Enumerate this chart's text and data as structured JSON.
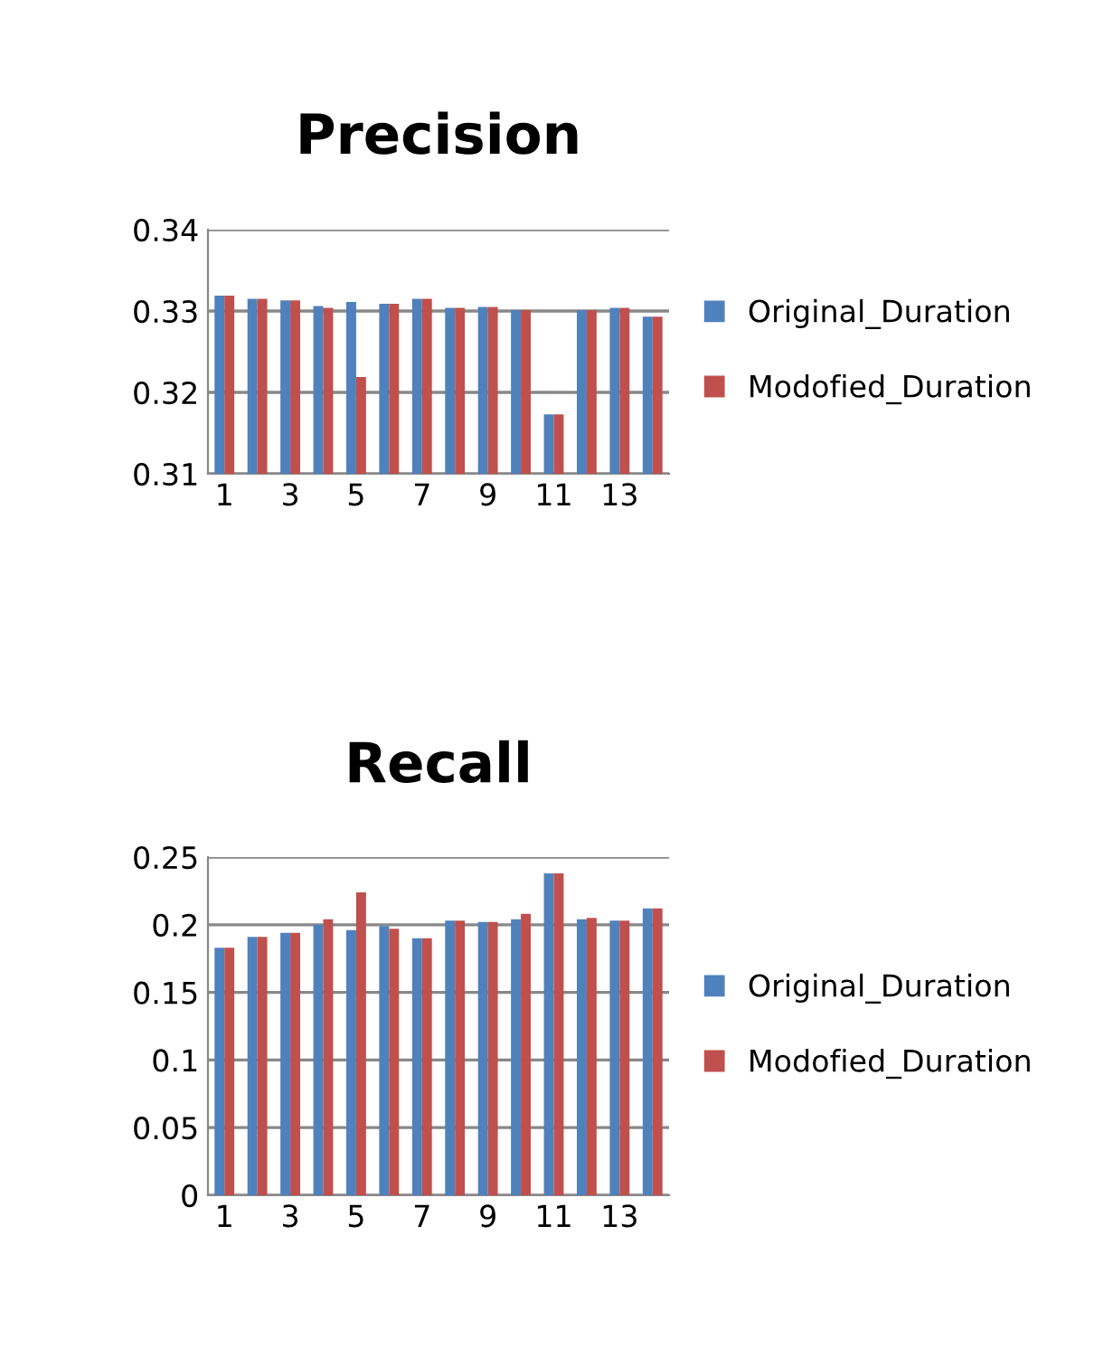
{
  "chart_data": [
    {
      "type": "bar",
      "title": "Precision",
      "categories": [
        "1",
        null,
        "3",
        null,
        "5",
        null,
        "7",
        null,
        "9",
        null,
        "11",
        null,
        "13",
        null
      ],
      "series": [
        {
          "name": "Original_Duration",
          "color": "#4f81bd",
          "values": [
            0.3319,
            0.3315,
            0.3313,
            0.3306,
            0.3311,
            0.3309,
            0.3315,
            0.3304,
            0.3305,
            0.3301,
            0.3173,
            0.3301,
            0.3304,
            0.3293
          ]
        },
        {
          "name": "Modofied_Duration",
          "color": "#c0504d",
          "values": [
            0.3319,
            0.3315,
            0.3313,
            0.3304,
            0.3219,
            0.3309,
            0.3315,
            0.3304,
            0.3305,
            0.3301,
            0.3173,
            0.3301,
            0.3304,
            0.3293
          ]
        }
      ],
      "ylim": [
        0.31,
        0.34
      ],
      "yticks": [
        0.31,
        0.32,
        0.33,
        0.34
      ],
      "grid": "y",
      "legend": "right"
    },
    {
      "type": "bar",
      "title": "Recall",
      "categories": [
        "1",
        null,
        "3",
        null,
        "5",
        null,
        "7",
        null,
        "9",
        null,
        "11",
        null,
        "13",
        null
      ],
      "series": [
        {
          "name": "Original_Duration",
          "color": "#4f81bd",
          "values": [
            0.183,
            0.191,
            0.194,
            0.2,
            0.196,
            0.199,
            0.19,
            0.203,
            0.202,
            0.204,
            0.238,
            0.204,
            0.203,
            0.212
          ]
        },
        {
          "name": "Modofied_Duration",
          "color": "#c0504d",
          "values": [
            0.183,
            0.191,
            0.194,
            0.204,
            0.224,
            0.197,
            0.19,
            0.203,
            0.202,
            0.208,
            0.238,
            0.205,
            0.203,
            0.212
          ]
        }
      ],
      "ylim": [
        0,
        0.25
      ],
      "yticks": [
        0,
        0.05,
        0.1,
        0.15,
        0.2,
        0.25
      ],
      "grid": "y",
      "legend": "right"
    }
  ]
}
